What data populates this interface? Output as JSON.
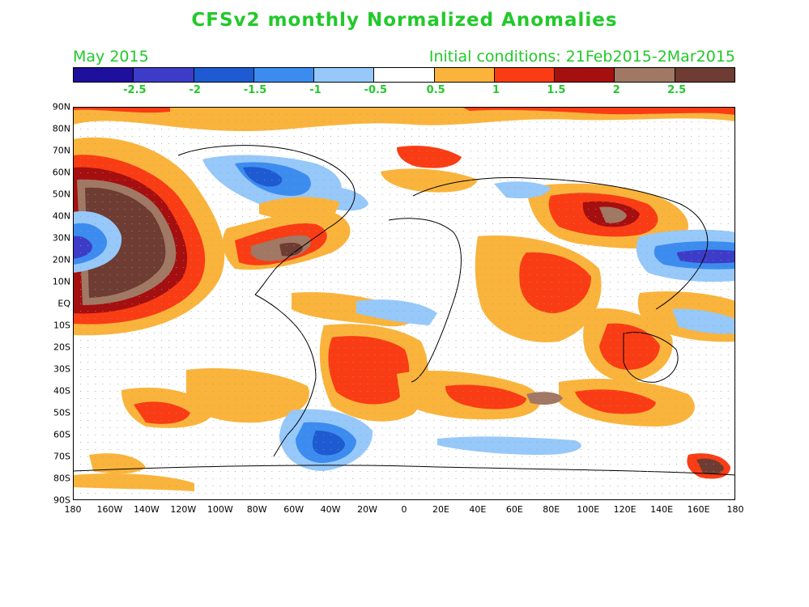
{
  "title": "CFSv2 monthly Normalized Anomalies",
  "target_month": "May 2015",
  "initial_conditions": "Initial conditions: 21Feb2015-2Mar2015",
  "colorbar": {
    "colors": [
      "#1e0f9c",
      "#3c3cc8",
      "#1e5ad2",
      "#3c8cf0",
      "#96c8fa",
      "#ffffff",
      "#fab43c",
      "#fa3c14",
      "#a50f0f",
      "#a07864",
      "#6e3c32"
    ],
    "ticks": [
      "-2.5",
      "-2",
      "-1.5",
      "-1",
      "-0.5",
      "0.5",
      "1",
      "1.5",
      "2",
      "2.5"
    ]
  },
  "lat_labels": [
    "90N",
    "80N",
    "70N",
    "60N",
    "50N",
    "40N",
    "30N",
    "20N",
    "10N",
    "EQ",
    "10S",
    "20S",
    "30S",
    "40S",
    "50S",
    "60S",
    "70S",
    "80S",
    "90S"
  ],
  "lon_labels": [
    "180",
    "160W",
    "140W",
    "120W",
    "100W",
    "80W",
    "60W",
    "40W",
    "20W",
    "0",
    "20E",
    "40E",
    "60E",
    "80E",
    "100E",
    "120E",
    "140E",
    "160E",
    "180"
  ]
}
